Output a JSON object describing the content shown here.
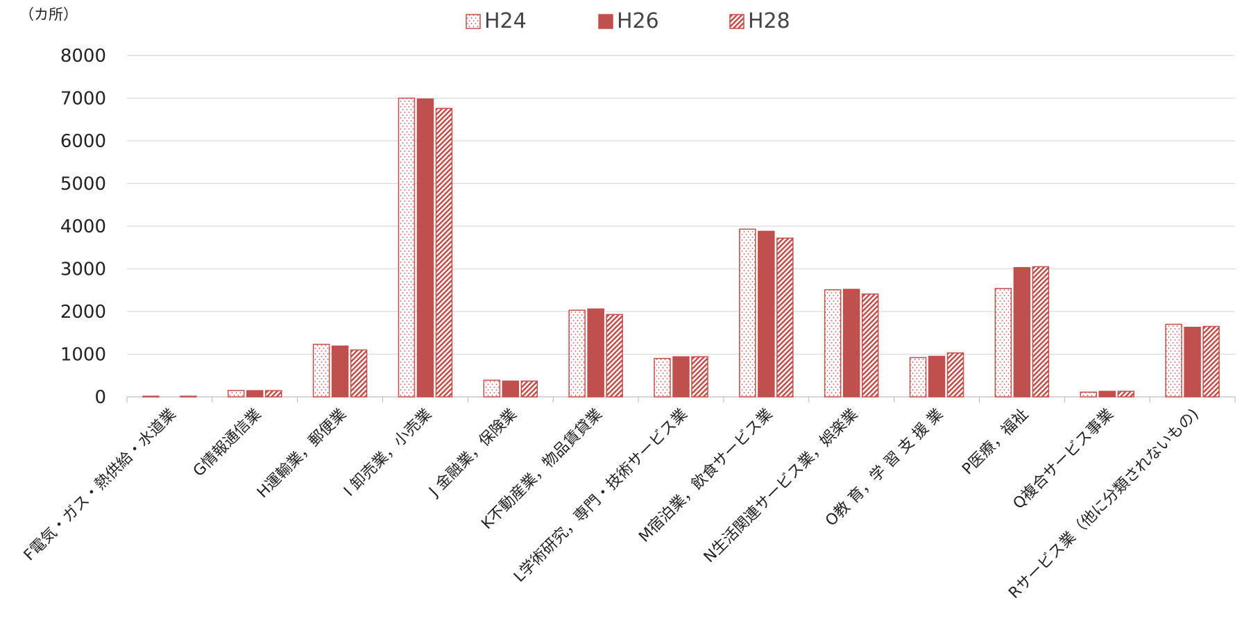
{
  "chart_data": {
    "type": "bar",
    "unit_label": "（カ所）",
    "categories": [
      "F電気・ガス・熱供給・水道業",
      "G情報通信業",
      "H運輸業，郵便業",
      "I 卸売業，小売業",
      "J 金融業，保険業",
      "K不動産業，物品賃貸業",
      "L学術研究，専門・技術サービス業",
      "M宿泊業，飲食サービス業",
      "N生活関連サービス業，娯楽業",
      "O教 育，学 習 支 援 業",
      "P医療，福祉",
      "Q複合サービス事業",
      "Rサービス業（他に分類されないもの)"
    ],
    "series": [
      {
        "name": "H24",
        "pattern": "dots",
        "values": [
          15,
          150,
          1230,
          7000,
          390,
          2030,
          900,
          3930,
          2510,
          920,
          2540,
          110,
          1700
        ]
      },
      {
        "name": "H26",
        "pattern": "solid",
        "values": [
          0,
          145,
          1190,
          6980,
          370,
          2060,
          940,
          3880,
          2520,
          950,
          3030,
          130,
          1630
        ]
      },
      {
        "name": "H28",
        "pattern": "hatched",
        "values": [
          15,
          145,
          1100,
          6760,
          370,
          1930,
          940,
          3720,
          2410,
          1030,
          3050,
          130,
          1650
        ]
      }
    ],
    "ylim": [
      0,
      8000
    ],
    "yticks": [
      0,
      1000,
      2000,
      3000,
      4000,
      5000,
      6000,
      7000,
      8000
    ],
    "legend_position": "top-center",
    "grid": true,
    "colors": {
      "bar": "#C0504D",
      "grid": "#D9D9D9",
      "axis": "#BFBFBF",
      "text": "#222222"
    }
  }
}
